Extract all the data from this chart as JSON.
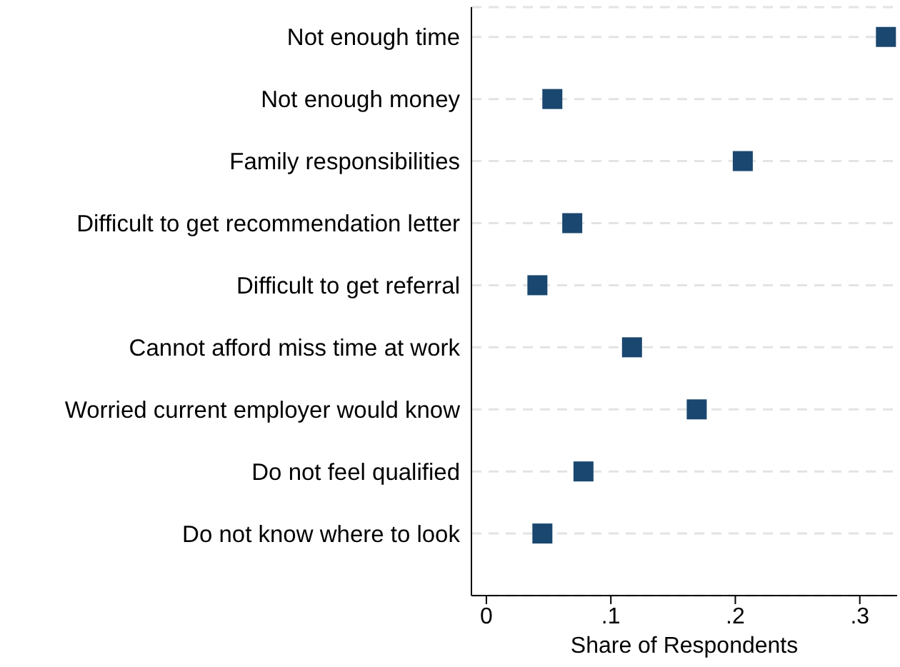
{
  "chart_data": {
    "type": "scatter",
    "xlabel": "Share of Respondents",
    "categories": [
      "Not enough time",
      "Not enough money",
      "Family responsibilities",
      "Difficult to get recommendation letter",
      "Difficult to get referral",
      "Cannot afford miss time at work",
      "Worried current employer would know",
      "Do not feel qualified",
      "Do not know where to look"
    ],
    "orientation": "horizontal",
    "series": [
      {
        "color": "#1a476f",
        "values": [
          0.321,
          0.053,
          0.206,
          0.069,
          0.041,
          0.117,
          0.169,
          0.078,
          0.045
        ]
      }
    ],
    "xlim": [
      -0.012,
      0.33
    ],
    "xticks": [
      0,
      {
        "value": 0.1,
        "label": ".1"
      },
      {
        "value": 0.2,
        "label": ".2"
      },
      {
        "value": 0.3,
        "label": ".3"
      }
    ],
    "grid": "y",
    "marker": "square",
    "legend": false
  }
}
